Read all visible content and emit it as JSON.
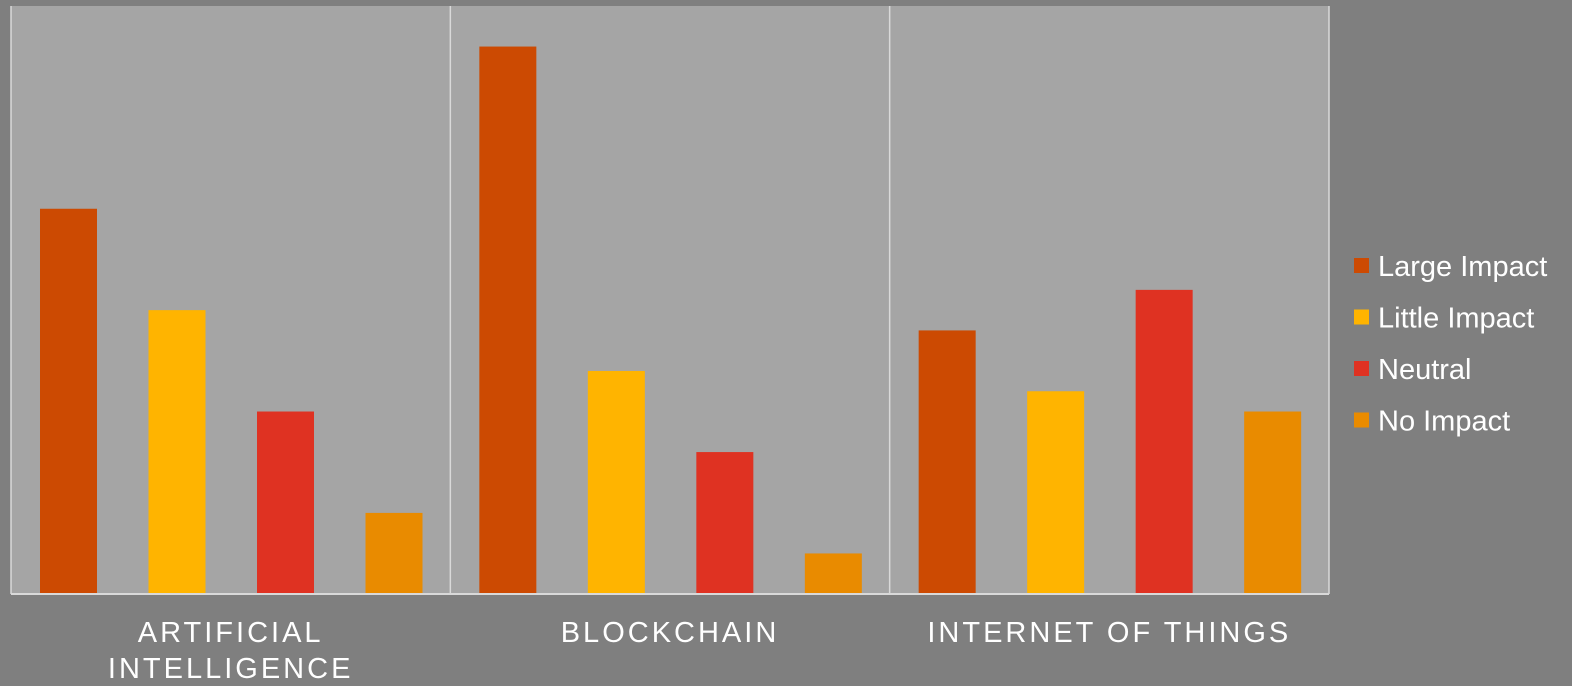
{
  "colors": {
    "page_background": "#7f7f7f",
    "plot_background": "#a5a5a5",
    "grid_line": "#d9d9d9"
  },
  "chart_data": {
    "type": "bar",
    "title": "",
    "xlabel": "",
    "ylabel": "",
    "categories": [
      [
        "ARTIFICIAL",
        "INTELLIGENCE"
      ],
      [
        "BLOCKCHAIN"
      ],
      [
        "INTERNET OF THINGS"
      ]
    ],
    "ylim": [
      0,
      29
    ],
    "grid": false,
    "category_dividers": true,
    "legend_position": "right",
    "series": [
      {
        "name": "Large Impact",
        "color": "#cc4a02",
        "values": [
          19,
          27,
          13
        ]
      },
      {
        "name": "Little Impact",
        "color": "#ffb400",
        "values": [
          14,
          11,
          10
        ]
      },
      {
        "name": "Neutral",
        "color": "#df3222",
        "values": [
          9,
          7,
          15
        ]
      },
      {
        "name": "No Impact",
        "color": "#e98b00",
        "values": [
          4,
          2,
          9
        ]
      }
    ]
  }
}
